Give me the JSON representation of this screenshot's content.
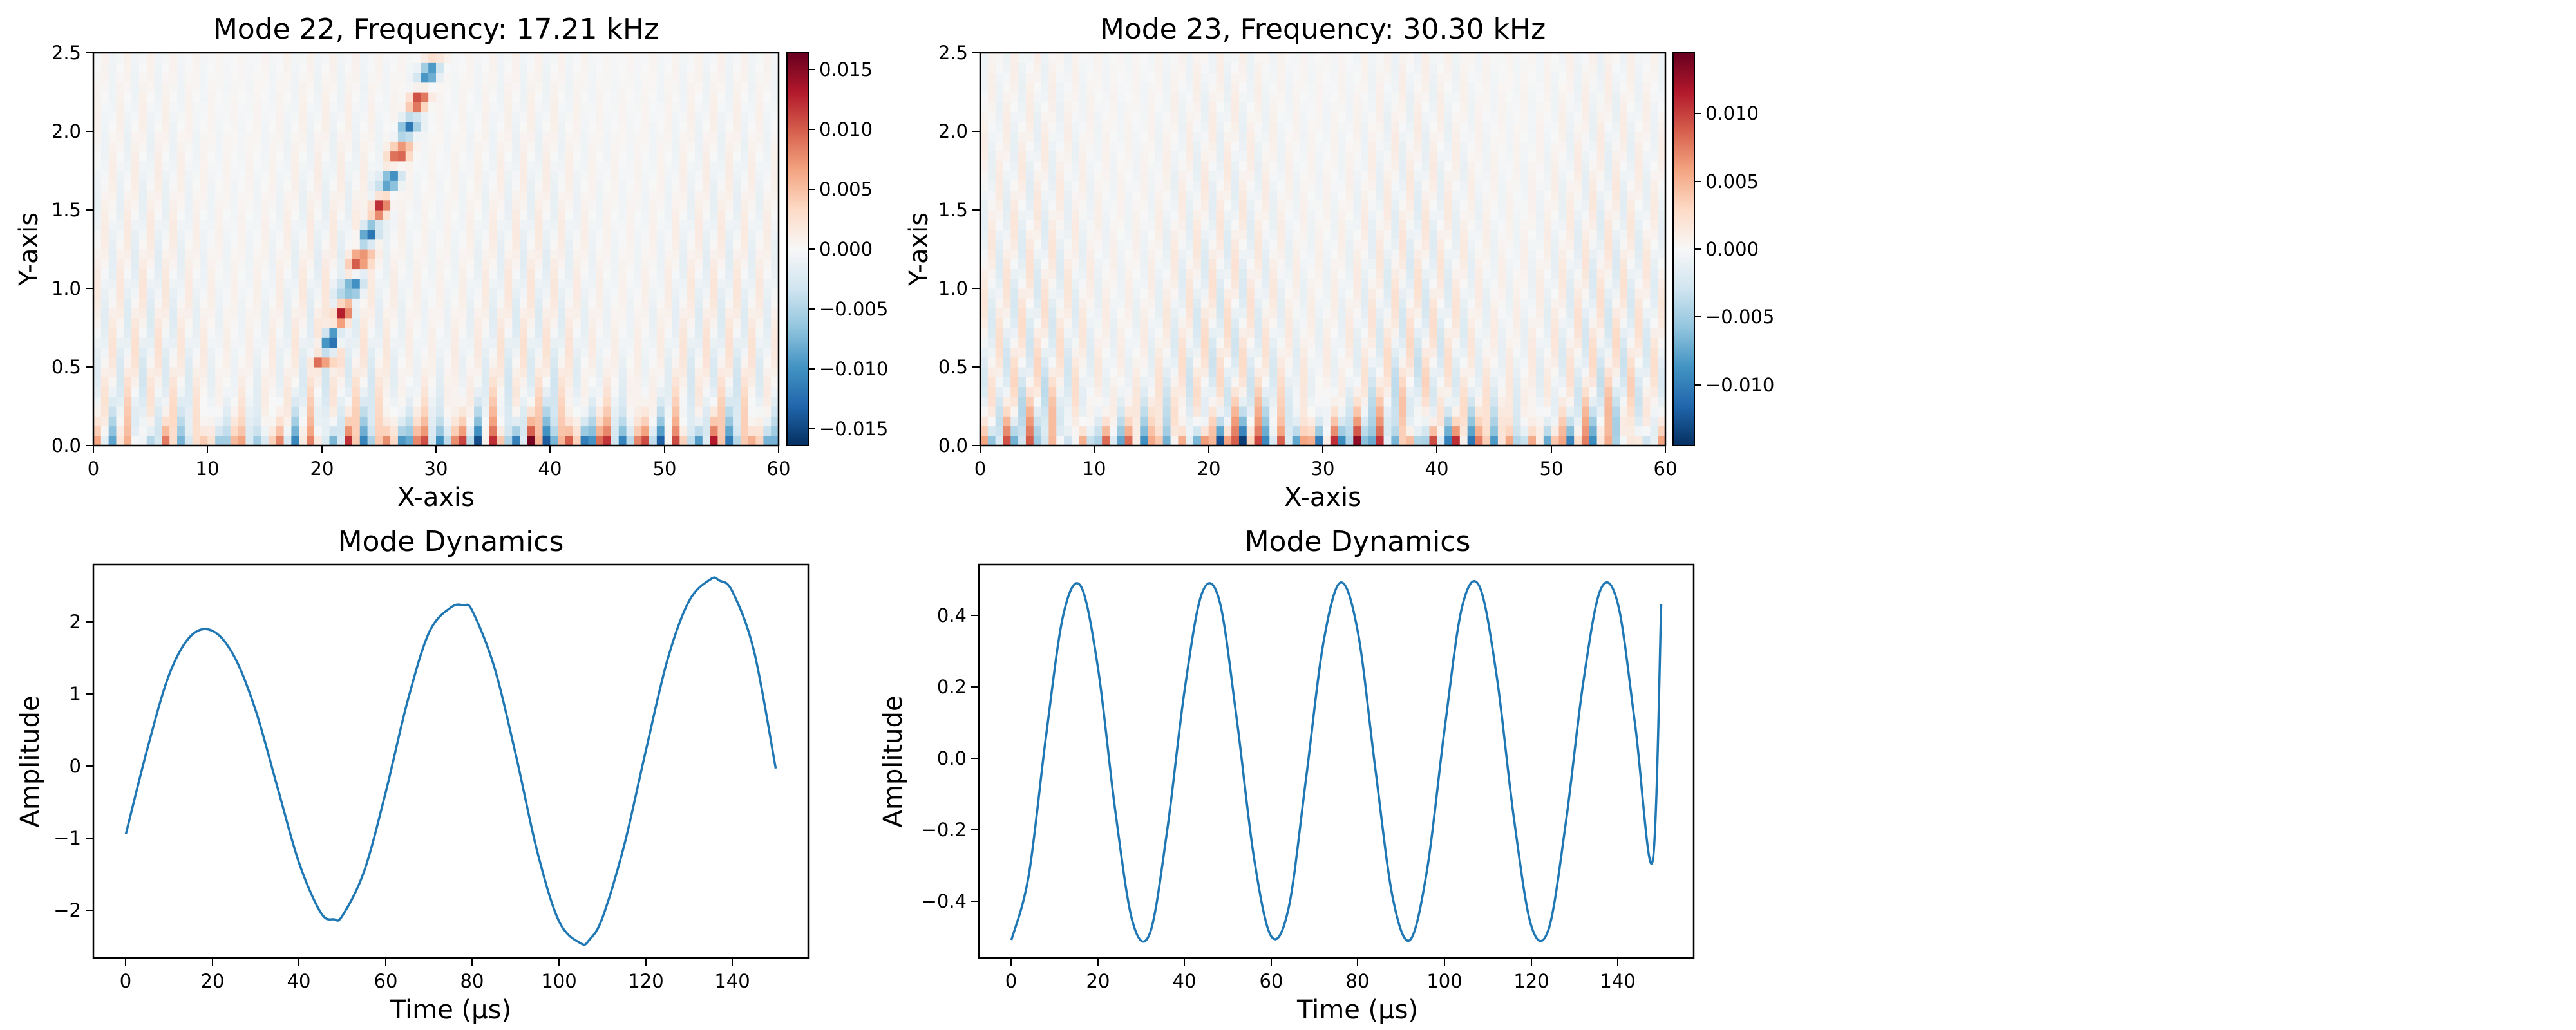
{
  "chart_data": [
    {
      "type": "heatmap",
      "title": "Mode 22, Frequency: 17.21 kHz",
      "xlabel": "X-axis",
      "ylabel": "Y-axis",
      "xlim": [
        0,
        60
      ],
      "ylim": [
        0,
        2.5
      ],
      "xticks": [
        "0",
        "10",
        "20",
        "30",
        "40",
        "50",
        "60"
      ],
      "yticks": [
        "0.0",
        "0.5",
        "1.0",
        "1.5",
        "2.0",
        "2.5"
      ],
      "colormap": "RdBu_r",
      "value_range": [
        -0.0165,
        0.0165
      ],
      "colorbar_ticks": [
        "0.015",
        "0.010",
        "0.005",
        "0.000",
        "−0.005",
        "−0.010",
        "−0.015"
      ],
      "pattern": {
        "wall_band_strength": 0.0165,
        "wall_band_period": 3.2,
        "wall_band_envelope_center": 40,
        "streak_period": 2.0,
        "streak_strength": 0.004,
        "diagonal_feature": {
          "x_start": 20,
          "x_end": 30,
          "y_start": 0.5,
          "y_end": 2.5,
          "strength": 0.012
        }
      }
    },
    {
      "type": "heatmap",
      "title": "Mode 23, Frequency: 30.30 kHz",
      "xlabel": "X-axis",
      "ylabel": "Y-axis",
      "xlim": [
        0,
        60
      ],
      "ylim": [
        0,
        2.5
      ],
      "xticks": [
        "0",
        "10",
        "20",
        "30",
        "40",
        "50",
        "60"
      ],
      "yticks": [
        "0.0",
        "0.5",
        "1.0",
        "1.5",
        "2.0",
        "2.5"
      ],
      "colormap": "RdBu_r",
      "value_range": [
        -0.0145,
        0.0145
      ],
      "colorbar_ticks": [
        "0.010",
        "0.005",
        "0.000",
        "−0.005",
        "−0.010"
      ],
      "pattern": {
        "wall_band_strength": 0.0135,
        "wall_band_period": 2.2,
        "wall_band_envelope_center": 30,
        "streak_period": 1.8,
        "streak_strength": 0.0045
      }
    },
    {
      "type": "line",
      "title": "Mode Dynamics",
      "xlabel": "Time (μs)",
      "ylabel": "Amplitude",
      "xlim": [
        -7.5,
        157.5
      ],
      "ylim": [
        -2.6,
        2.8
      ],
      "xticks": [
        "0",
        "20",
        "40",
        "60",
        "80",
        "100",
        "120",
        "140"
      ],
      "yticks": [
        "−2",
        "−1",
        "0",
        "1",
        "2"
      ],
      "line_color": "#1f77b4",
      "series": [
        {
          "x": [
            0,
            5,
            10,
            15,
            20,
            25,
            30,
            35,
            40,
            45,
            48,
            50,
            55,
            60,
            65,
            70,
            75,
            78,
            80,
            85,
            90,
            95,
            100,
            105,
            107,
            110,
            115,
            120,
            125,
            130,
            135,
            137,
            140,
            145,
            150
          ],
          "values": [
            -0.9,
            0.28,
            1.29,
            1.82,
            1.89,
            1.54,
            0.79,
            -0.26,
            -1.3,
            -1.98,
            -2.07,
            -2.02,
            -1.41,
            -0.32,
            0.92,
            1.87,
            2.21,
            2.24,
            2.16,
            1.4,
            0.19,
            -1.15,
            -2.1,
            -2.4,
            -2.35,
            -2.05,
            -1.06,
            0.24,
            1.49,
            2.3,
            2.6,
            2.58,
            2.43,
            1.61,
            0.0
          ]
        }
      ]
    },
    {
      "type": "line",
      "title": "Mode Dynamics",
      "xlabel": "Time (μs)",
      "ylabel": "Amplitude",
      "xlim": [
        -7.5,
        157.5
      ],
      "ylim": [
        -0.55,
        0.55
      ],
      "xticks": [
        "0",
        "20",
        "40",
        "60",
        "80",
        "100",
        "120",
        "140"
      ],
      "yticks": [
        "−0.4",
        "−0.2",
        "0.0",
        "0.2",
        "0.4"
      ],
      "line_color": "#1f77b4",
      "series": [
        {
          "x": [
            0,
            4,
            8,
            12,
            16,
            20,
            24,
            28,
            32,
            36,
            40,
            44,
            48,
            52,
            56,
            60,
            64,
            68,
            72,
            76,
            80,
            84,
            88,
            92,
            96,
            100,
            104,
            108,
            112,
            116,
            120,
            124,
            128,
            132,
            136,
            140,
            144,
            148,
            150
          ],
          "values": [
            -0.5,
            -0.32,
            0.07,
            0.41,
            0.49,
            0.26,
            -0.14,
            -0.45,
            -0.48,
            -0.19,
            0.2,
            0.47,
            0.45,
            0.12,
            -0.27,
            -0.49,
            -0.41,
            -0.05,
            0.33,
            0.5,
            0.36,
            -0.02,
            -0.38,
            -0.5,
            -0.3,
            0.09,
            0.43,
            0.49,
            0.24,
            -0.16,
            -0.46,
            -0.47,
            -0.17,
            0.22,
            0.48,
            0.44,
            0.1,
            -0.28,
            0.44
          ]
        }
      ]
    }
  ]
}
